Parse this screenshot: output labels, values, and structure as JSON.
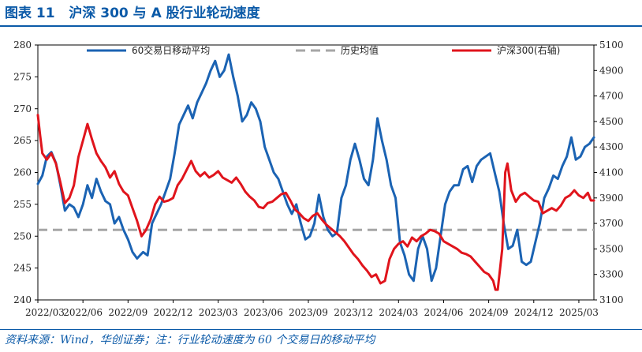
{
  "header": {
    "figure_label": "图表 11",
    "title": "沪深 300 与 A 股行业轮动速度"
  },
  "footer": {
    "source": "资料来源：Wind，华创证券；注：行业轮动速度为 60 个交易日的移动平均"
  },
  "colors": {
    "ma": "#1b63b3",
    "hist": "#a6a6a6",
    "csi": "#e0141c",
    "title": "#0b5aa8"
  },
  "chart_data": {
    "type": "line",
    "title": "沪深 300 与 A 股行业轮动速度",
    "left_axis": {
      "range": [
        240,
        280
      ],
      "ticks": [
        "240",
        "245",
        "250",
        "255",
        "260",
        "265",
        "270",
        "275",
        "280"
      ]
    },
    "right_axis": {
      "range": [
        3100,
        5100
      ],
      "ticks": [
        "3100",
        "3300",
        "3500",
        "3700",
        "3900",
        "4100",
        "4300",
        "4500",
        "4700",
        "4900",
        "5100"
      ]
    },
    "x_range": [
      0,
      37
    ],
    "x_ticks": [
      {
        "label": "2022/03",
        "x": 0
      },
      {
        "label": "2022/06",
        "x": 3
      },
      {
        "label": "2022/09",
        "x": 6
      },
      {
        "label": "2022/12",
        "x": 9
      },
      {
        "label": "2023/03",
        "x": 12
      },
      {
        "label": "2023/06",
        "x": 15
      },
      {
        "label": "2023/09",
        "x": 18
      },
      {
        "label": "2023/12",
        "x": 21
      },
      {
        "label": "2024/03",
        "x": 24
      },
      {
        "label": "2024/06",
        "x": 27
      },
      {
        "label": "2024/09",
        "x": 30
      },
      {
        "label": "2024/12",
        "x": 33
      },
      {
        "label": "2025/03",
        "x": 36
      }
    ],
    "legend": [
      {
        "name": "60交易日移动平均",
        "style": "solid",
        "color": "#1b63b3"
      },
      {
        "name": "历史均值",
        "style": "dashed",
        "color": "#a6a6a6"
      },
      {
        "name": "沪深300(右轴)",
        "style": "solid",
        "color": "#e0141c"
      }
    ],
    "series": [
      {
        "name": "60交易日移动平均",
        "axis": "left",
        "points": [
          [
            0,
            258.2
          ],
          [
            0.3,
            259.5
          ],
          [
            0.6,
            262.5
          ],
          [
            0.9,
            263.2
          ],
          [
            1.2,
            261.5
          ],
          [
            1.5,
            258
          ],
          [
            1.8,
            254
          ],
          [
            2.1,
            255
          ],
          [
            2.4,
            254.5
          ],
          [
            2.7,
            253
          ],
          [
            3,
            255
          ],
          [
            3.3,
            258
          ],
          [
            3.6,
            256
          ],
          [
            3.9,
            259
          ],
          [
            4.2,
            257
          ],
          [
            4.5,
            255.5
          ],
          [
            4.8,
            255
          ],
          [
            5.1,
            252
          ],
          [
            5.4,
            253
          ],
          [
            5.7,
            251
          ],
          [
            6,
            249.5
          ],
          [
            6.3,
            247.5
          ],
          [
            6.6,
            246.5
          ],
          [
            7,
            247.5
          ],
          [
            7.3,
            247
          ],
          [
            7.6,
            252
          ],
          [
            7.9,
            253.5
          ],
          [
            8.2,
            255
          ],
          [
            8.5,
            257
          ],
          [
            8.8,
            259
          ],
          [
            9.1,
            263
          ],
          [
            9.4,
            267.5
          ],
          [
            9.7,
            269
          ],
          [
            10,
            270.5
          ],
          [
            10.3,
            268.5
          ],
          [
            10.6,
            271
          ],
          [
            10.9,
            272.5
          ],
          [
            11.2,
            274
          ],
          [
            11.5,
            276
          ],
          [
            11.8,
            277.5
          ],
          [
            12.1,
            275
          ],
          [
            12.4,
            276
          ],
          [
            12.7,
            278.5
          ],
          [
            13,
            275
          ],
          [
            13.3,
            272
          ],
          [
            13.6,
            268
          ],
          [
            13.9,
            269
          ],
          [
            14.2,
            271
          ],
          [
            14.5,
            270
          ],
          [
            14.8,
            268
          ],
          [
            15.1,
            264
          ],
          [
            15.4,
            262
          ],
          [
            15.7,
            260
          ],
          [
            16,
            259
          ],
          [
            16.3,
            257
          ],
          [
            16.6,
            255
          ],
          [
            16.9,
            253.5
          ],
          [
            17.2,
            255
          ],
          [
            17.5,
            252
          ],
          [
            17.8,
            249.5
          ],
          [
            18.1,
            250
          ],
          [
            18.4,
            252
          ],
          [
            18.7,
            256.5
          ],
          [
            19,
            253
          ],
          [
            19.3,
            251
          ],
          [
            19.6,
            250
          ],
          [
            19.9,
            250.5
          ],
          [
            20.2,
            256
          ],
          [
            20.5,
            258
          ],
          [
            20.8,
            262
          ],
          [
            21.1,
            264.5
          ],
          [
            21.4,
            262
          ],
          [
            21.7,
            259
          ],
          [
            22,
            258
          ],
          [
            22.3,
            262
          ],
          [
            22.6,
            268.5
          ],
          [
            22.9,
            265
          ],
          [
            23.2,
            262
          ],
          [
            23.5,
            258
          ],
          [
            23.8,
            256
          ],
          [
            24.1,
            249
          ],
          [
            24.4,
            247
          ],
          [
            24.7,
            244
          ],
          [
            25,
            243
          ],
          [
            25.3,
            248
          ],
          [
            25.6,
            250
          ],
          [
            25.9,
            248
          ],
          [
            26.2,
            243
          ],
          [
            26.5,
            245
          ],
          [
            26.8,
            250
          ],
          [
            27.1,
            255
          ],
          [
            27.4,
            257
          ],
          [
            27.7,
            258
          ],
          [
            28,
            258
          ],
          [
            28.3,
            260.5
          ],
          [
            28.6,
            261
          ],
          [
            28.9,
            258.5
          ],
          [
            29.2,
            261
          ],
          [
            29.5,
            262
          ],
          [
            29.8,
            262.5
          ],
          [
            30.1,
            263
          ],
          [
            30.4,
            260
          ],
          [
            30.7,
            257
          ],
          [
            31,
            252
          ],
          [
            31.3,
            248
          ],
          [
            31.6,
            248.5
          ],
          [
            31.9,
            251
          ],
          [
            32.2,
            246
          ],
          [
            32.5,
            245.5
          ],
          [
            32.8,
            246
          ],
          [
            33.1,
            249
          ],
          [
            33.4,
            252
          ],
          [
            33.7,
            256
          ],
          [
            34,
            257.5
          ],
          [
            34.3,
            259.5
          ],
          [
            34.6,
            259
          ],
          [
            34.9,
            261
          ],
          [
            35.2,
            262.5
          ],
          [
            35.5,
            265.5
          ],
          [
            35.8,
            262
          ],
          [
            36.1,
            262.5
          ],
          [
            36.4,
            264
          ],
          [
            36.7,
            264.5
          ],
          [
            37,
            265.5
          ]
        ]
      },
      {
        "name": "历史均值",
        "axis": "left",
        "style": "dashed",
        "points": [
          [
            0,
            251
          ],
          [
            37,
            251
          ]
        ]
      },
      {
        "name": "沪深300(右轴)",
        "axis": "right",
        "points": [
          [
            0,
            4550
          ],
          [
            0.15,
            4390
          ],
          [
            0.3,
            4250
          ],
          [
            0.6,
            4200
          ],
          [
            0.9,
            4250
          ],
          [
            1.2,
            4170
          ],
          [
            1.5,
            4020
          ],
          [
            1.8,
            3860
          ],
          [
            2.1,
            3900
          ],
          [
            2.4,
            4000
          ],
          [
            2.7,
            4220
          ],
          [
            3,
            4350
          ],
          [
            3.3,
            4480
          ],
          [
            3.6,
            4360
          ],
          [
            3.9,
            4250
          ],
          [
            4.2,
            4190
          ],
          [
            4.5,
            4140
          ],
          [
            4.8,
            4060
          ],
          [
            5.1,
            4110
          ],
          [
            5.4,
            4010
          ],
          [
            5.7,
            3950
          ],
          [
            6,
            3920
          ],
          [
            6.3,
            3820
          ],
          [
            6.6,
            3720
          ],
          [
            6.9,
            3600
          ],
          [
            7.2,
            3650
          ],
          [
            7.5,
            3730
          ],
          [
            7.8,
            3850
          ],
          [
            8.1,
            3910
          ],
          [
            8.4,
            3870
          ],
          [
            8.7,
            3880
          ],
          [
            9,
            3900
          ],
          [
            9.3,
            4000
          ],
          [
            9.6,
            4050
          ],
          [
            9.9,
            4120
          ],
          [
            10.2,
            4190
          ],
          [
            10.5,
            4110
          ],
          [
            10.8,
            4070
          ],
          [
            11.1,
            4100
          ],
          [
            11.4,
            4060
          ],
          [
            11.7,
            4080
          ],
          [
            12,
            4110
          ],
          [
            12.3,
            4060
          ],
          [
            12.6,
            4040
          ],
          [
            12.9,
            4020
          ],
          [
            13.2,
            4060
          ],
          [
            13.5,
            4010
          ],
          [
            13.8,
            3950
          ],
          [
            14.1,
            3910
          ],
          [
            14.4,
            3880
          ],
          [
            14.7,
            3830
          ],
          [
            15,
            3820
          ],
          [
            15.3,
            3860
          ],
          [
            15.6,
            3870
          ],
          [
            15.9,
            3900
          ],
          [
            16.2,
            3930
          ],
          [
            16.5,
            3940
          ],
          [
            16.8,
            3880
          ],
          [
            17.1,
            3810
          ],
          [
            17.4,
            3780
          ],
          [
            17.7,
            3740
          ],
          [
            18,
            3720
          ],
          [
            18.3,
            3760
          ],
          [
            18.6,
            3780
          ],
          [
            18.9,
            3730
          ],
          [
            19.2,
            3690
          ],
          [
            19.5,
            3660
          ],
          [
            19.8,
            3630
          ],
          [
            20.1,
            3600
          ],
          [
            20.4,
            3560
          ],
          [
            20.7,
            3510
          ],
          [
            21,
            3460
          ],
          [
            21.3,
            3420
          ],
          [
            21.6,
            3370
          ],
          [
            21.9,
            3330
          ],
          [
            22.2,
            3280
          ],
          [
            22.5,
            3300
          ],
          [
            22.8,
            3230
          ],
          [
            23.1,
            3250
          ],
          [
            23.4,
            3420
          ],
          [
            23.7,
            3500
          ],
          [
            24,
            3540
          ],
          [
            24.3,
            3560
          ],
          [
            24.6,
            3520
          ],
          [
            24.9,
            3590
          ],
          [
            25.2,
            3560
          ],
          [
            25.5,
            3600
          ],
          [
            25.8,
            3620
          ],
          [
            26.1,
            3650
          ],
          [
            26.4,
            3640
          ],
          [
            26.7,
            3620
          ],
          [
            27,
            3560
          ],
          [
            27.3,
            3540
          ],
          [
            27.6,
            3520
          ],
          [
            27.9,
            3500
          ],
          [
            28.2,
            3470
          ],
          [
            28.5,
            3460
          ],
          [
            28.8,
            3440
          ],
          [
            29.1,
            3400
          ],
          [
            29.4,
            3360
          ],
          [
            29.7,
            3320
          ],
          [
            30,
            3300
          ],
          [
            30.3,
            3250
          ],
          [
            30.45,
            3180
          ],
          [
            30.6,
            3180
          ],
          [
            30.9,
            3500
          ],
          [
            31.1,
            4100
          ],
          [
            31.25,
            4170
          ],
          [
            31.5,
            3960
          ],
          [
            31.8,
            3870
          ],
          [
            32.1,
            3920
          ],
          [
            32.4,
            3940
          ],
          [
            32.7,
            3910
          ],
          [
            33,
            3880
          ],
          [
            33.3,
            3870
          ],
          [
            33.6,
            3780
          ],
          [
            33.9,
            3800
          ],
          [
            34.2,
            3820
          ],
          [
            34.5,
            3800
          ],
          [
            34.8,
            3840
          ],
          [
            35.1,
            3900
          ],
          [
            35.4,
            3920
          ],
          [
            35.7,
            3960
          ],
          [
            36,
            3920
          ],
          [
            36.3,
            3900
          ],
          [
            36.6,
            3940
          ],
          [
            36.8,
            3880
          ],
          [
            37,
            3880
          ]
        ]
      }
    ]
  }
}
